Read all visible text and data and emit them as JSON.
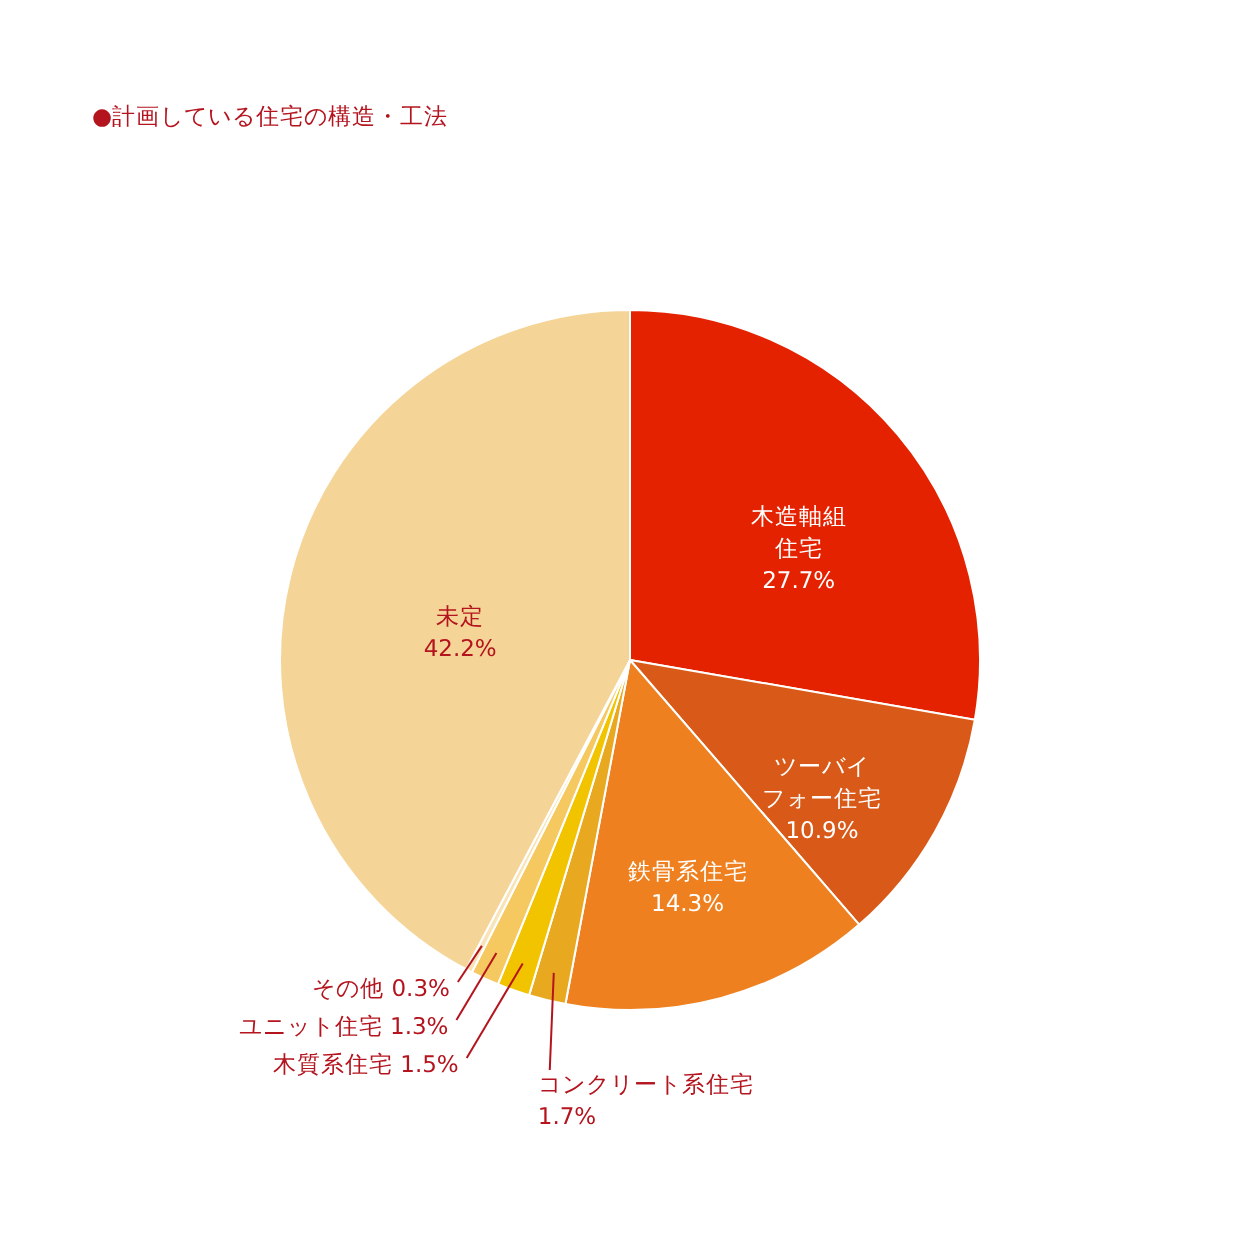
{
  "chart_data": {
    "type": "pie",
    "title": "●計画している住宅の構造・工法",
    "categories": [
      "木造軸組住宅",
      "ツーバイフォー住宅",
      "鉄骨系住宅",
      "コンクリート系住宅",
      "木質系住宅",
      "ユニット住宅",
      "その他",
      "未定"
    ],
    "values": [
      27.7,
      10.9,
      14.3,
      1.7,
      1.5,
      1.3,
      0.3,
      42.2
    ],
    "value_labels": [
      "27.7%",
      "10.9%",
      "14.3%",
      "1.7%",
      "1.5%",
      "1.3%",
      "0.3%",
      "42.2%"
    ],
    "colors": [
      "#e52200",
      "#d95a18",
      "#ee8020",
      "#e8a820",
      "#f2c400",
      "#f5c860",
      "#f8e4b8",
      "#f5d597"
    ]
  }
}
